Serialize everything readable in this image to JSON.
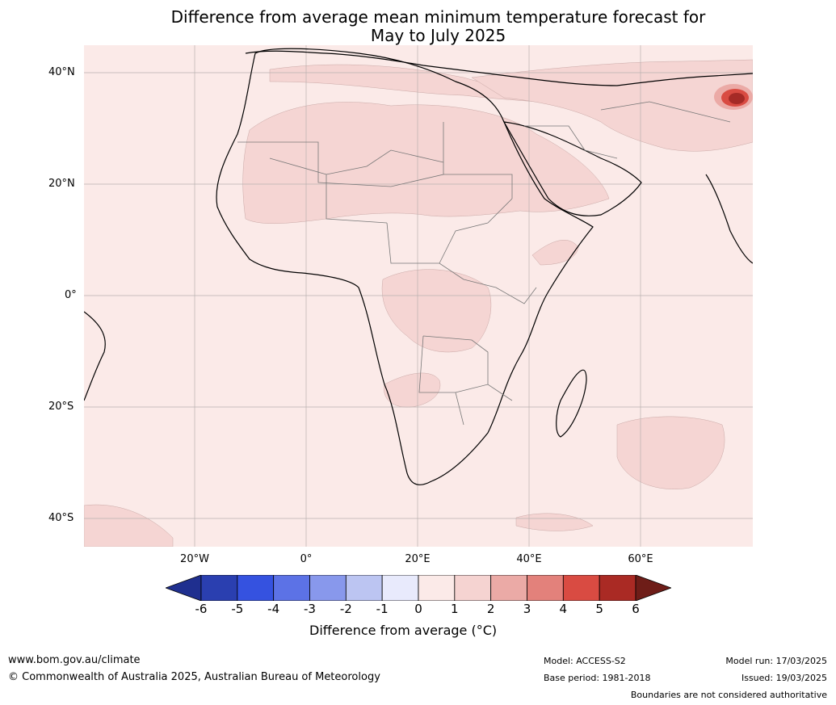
{
  "title": {
    "line1": "Difference from average mean minimum temperature forecast for",
    "line2": "May to July 2025"
  },
  "map": {
    "lat_labels": [
      "40°N",
      "20°N",
      "0°",
      "20°S",
      "40°S"
    ],
    "lon_labels": [
      "20°W",
      "0°",
      "20°E",
      "40°E",
      "60°E"
    ],
    "background_color": "#fbeae8",
    "anomaly_0_to_1_color": "#fbeae8",
    "anomaly_1_to_2_color": "#f5d5d3",
    "anomaly_hot_spot_color": "#a52a26"
  },
  "colorbar": {
    "ticks": [
      "-6",
      "-5",
      "-4",
      "-3",
      "-2",
      "-1",
      "0",
      "1",
      "2",
      "3",
      "4",
      "5",
      "6"
    ],
    "colors": [
      "#1f2f8f",
      "#2a3fb0",
      "#3552e0",
      "#5c72e6",
      "#8898ec",
      "#bcc5f2",
      "#e8eafc",
      "#fbeae8",
      "#f5d3d1",
      "#ebaaa6",
      "#e3817b",
      "#d94b42",
      "#aa2a24",
      "#6e1d18"
    ],
    "label": "Difference from average (°C)"
  },
  "footer": {
    "website": "www.bom.gov.au/climate",
    "copyright": "© Commonwealth of Australia 2025, Australian Bureau of Meteorology",
    "model": "Model: ACCESS-S2",
    "base_period": "Base period: 1981-2018",
    "model_run": "Model run: 17/03/2025",
    "issued": "Issued: 19/03/2025",
    "disclaimer": "Boundaries are not considered authoritative"
  }
}
